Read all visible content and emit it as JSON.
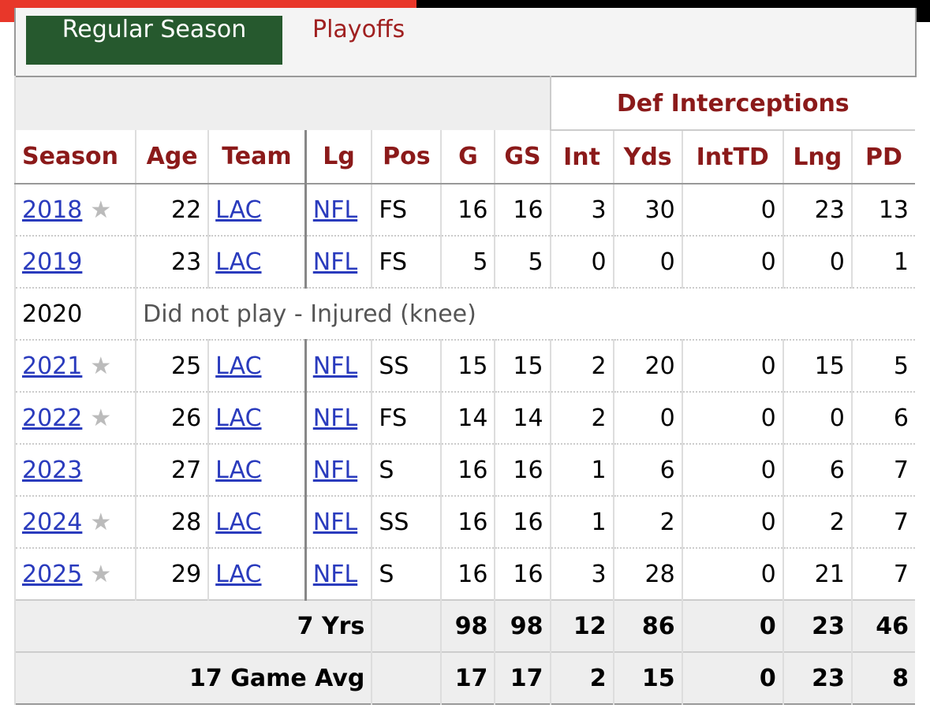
{
  "tabs": [
    "Regular Season",
    "Playoffs"
  ],
  "table": {
    "group_header": "Def Interceptions",
    "columns": [
      "Season",
      "Age",
      "Team",
      "Lg",
      "Pos",
      "G",
      "GS",
      "Int",
      "Yds",
      "IntTD",
      "Lng",
      "PD"
    ],
    "rows": [
      {
        "cells": [
          "2018",
          22,
          "LAC",
          "NFL",
          "FS",
          16,
          16,
          3,
          30,
          0,
          23,
          13
        ],
        "star": "★"
      },
      {
        "cells": [
          "2019",
          23,
          "LAC",
          "NFL",
          "FS",
          5,
          5,
          0,
          0,
          0,
          0,
          1
        ]
      },
      {
        "cells": [
          "2020"
        ],
        "note": "Did not play - Injured (knee)"
      },
      {
        "cells": [
          "2021",
          25,
          "LAC",
          "NFL",
          "SS",
          15,
          15,
          2,
          20,
          0,
          15,
          5
        ],
        "star": "★"
      },
      {
        "cells": [
          "2022",
          26,
          "LAC",
          "NFL",
          "FS",
          14,
          14,
          2,
          0,
          0,
          0,
          6
        ],
        "star": "★"
      },
      {
        "cells": [
          "2023",
          27,
          "LAC",
          "NFL",
          "S",
          16,
          16,
          1,
          6,
          0,
          6,
          7
        ]
      },
      {
        "cells": [
          "2024",
          28,
          "LAC",
          "NFL",
          "SS",
          16,
          16,
          1,
          2,
          0,
          2,
          7
        ],
        "star": "★"
      },
      {
        "cells": [
          "2025",
          29,
          "LAC",
          "NFL",
          "S",
          16,
          16,
          3,
          28,
          0,
          21,
          7
        ],
        "star": "★"
      }
    ],
    "footer": [
      {
        "label": "7 Yrs",
        "values": [
          98,
          98,
          12,
          86,
          0,
          23,
          46
        ]
      },
      {
        "label": "17 Game Avg",
        "values": [
          17,
          17,
          2,
          15,
          0,
          23,
          8
        ]
      }
    ]
  }
}
